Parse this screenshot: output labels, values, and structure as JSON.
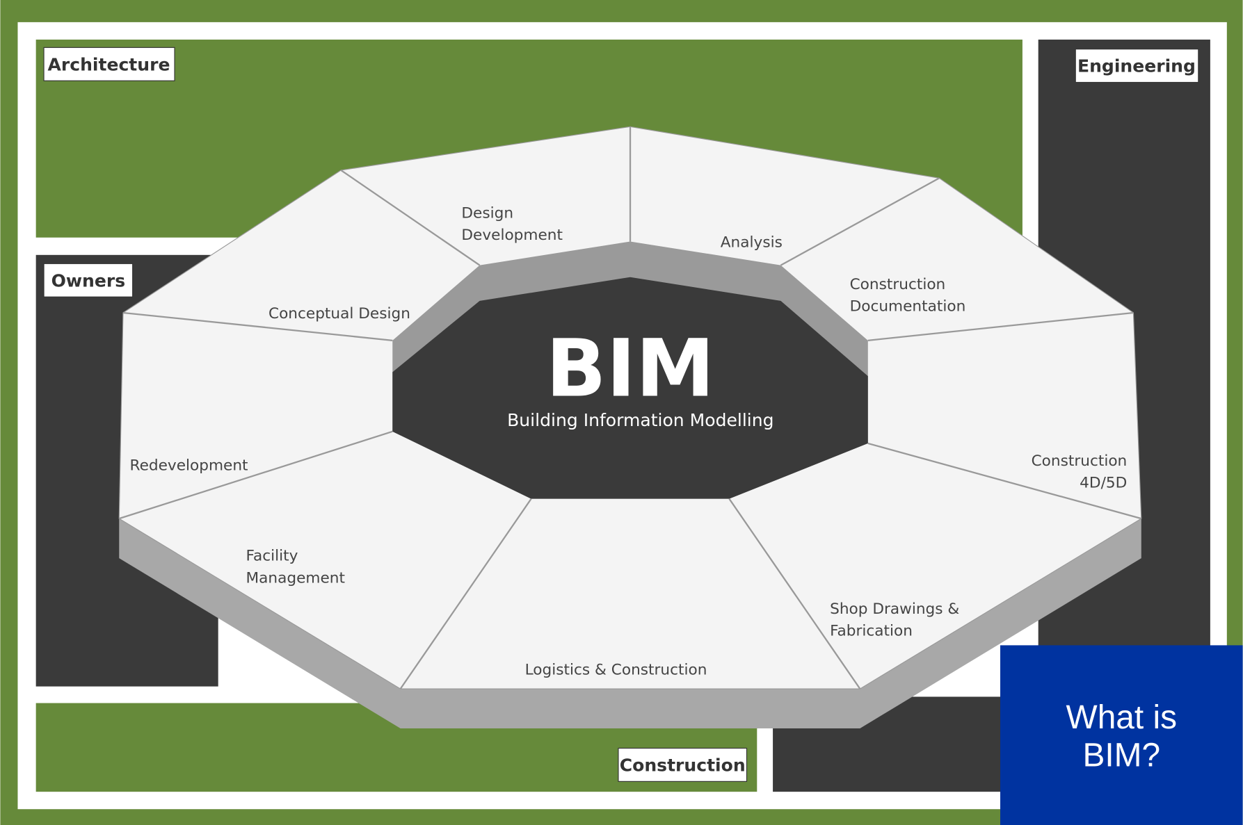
{
  "panels": {
    "architecture": "Architecture",
    "engineering": "Engineering",
    "owners": "Owners",
    "construction": "Construction"
  },
  "center": {
    "title": "BIM",
    "subtitle": "Building Information Modelling"
  },
  "stages": [
    {
      "lines": [
        "Conceptual Design"
      ]
    },
    {
      "lines": [
        "Design",
        "Development"
      ]
    },
    {
      "lines": [
        "Analysis"
      ]
    },
    {
      "lines": [
        "Construction",
        "Documentation"
      ]
    },
    {
      "lines": [
        "Construction",
        "4D/5D"
      ]
    },
    {
      "lines": [
        "Shop Drawings &",
        "Fabrication"
      ]
    },
    {
      "lines": [
        "Logistics & Construction"
      ]
    },
    {
      "lines": [
        "Facility",
        "Management"
      ]
    },
    {
      "lines": [
        "Redevelopment"
      ]
    }
  ],
  "callout": {
    "lines": [
      "What is",
      "BIM?"
    ]
  }
}
